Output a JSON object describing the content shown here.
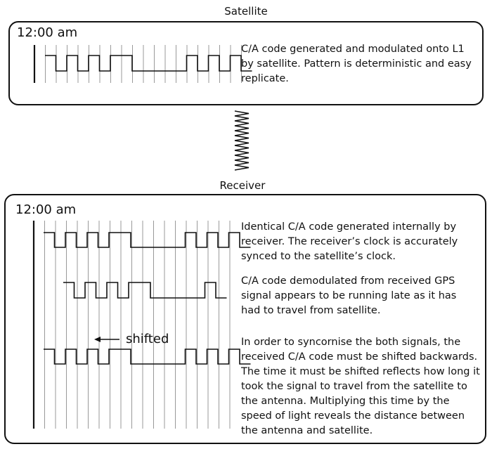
{
  "satellite": {
    "heading": "Satellite",
    "time": "12:00 am",
    "description": "C/A code generated and modulated onto L1 by satellite. Pattern is deterministic and easy replicate."
  },
  "receiver": {
    "heading": "Receiver",
    "time": "12:00 am",
    "description1": "Identical C/A code generated internally by receiver. The receiver’s clock is accurately synced to the satellite’s clock.",
    "description2": "C/A code demodulated from received GPS signal appears to be running late as it has had to travel from satellite.",
    "description3": "In order to syncornise the both signals, the received C/A code must be shifted backwards. The time it must be shifted reflects how long it took the signal to travel from the satellite to the antenna. Multiplying this time by the speed of light reveals the distance between the antenna and satellite.",
    "shift_label": "shifted"
  },
  "code_pattern": [
    1,
    0,
    1,
    0,
    1,
    0,
    1,
    1,
    0,
    0,
    0,
    0,
    0,
    1,
    0,
    1,
    0,
    1,
    0
  ]
}
